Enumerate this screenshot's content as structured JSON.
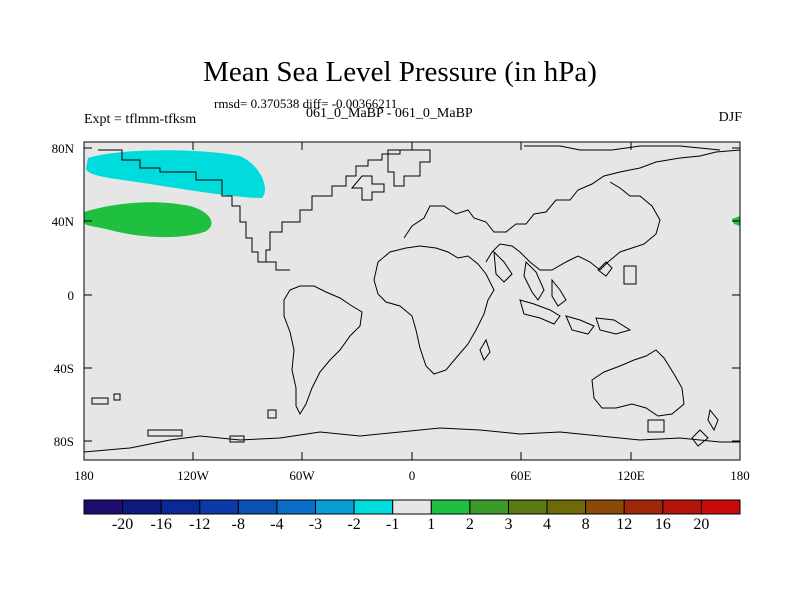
{
  "title": "Mean Sea Level Pressure (in hPa)",
  "subtitle": "rmsd= 0.370538 diff= -0.00366211",
  "experiment_label": "Expt = tflmm-tfksm",
  "experiment_names": "061_0_MaBP - 061_0_MaBP",
  "season": "DJF",
  "colors": {
    "land_background": "#e6e6e6",
    "coast": "#000000",
    "negative_anomaly": "#00dcdc",
    "positive_anomaly": "#1fbf3f"
  },
  "map": {
    "y_ticks": [
      "80N",
      "40N",
      "0",
      "40S",
      "80S"
    ],
    "x_ticks": [
      "180",
      "120W",
      "60W",
      "0",
      "60E",
      "120E",
      "180"
    ]
  },
  "colorbar": {
    "labels": [
      "-20",
      "-16",
      "-12",
      "-8",
      "-4",
      "-3",
      "-2",
      "-1",
      "1",
      "2",
      "3",
      "4",
      "8",
      "12",
      "16",
      "20"
    ],
    "colors": [
      "#1f0d6e",
      "#0e1a82",
      "#0a2896",
      "#0c3aa8",
      "#0a52b4",
      "#0a6ec8",
      "#0a9ed4",
      "#00dcdc",
      "#e6e6e6",
      "#1fbf3f",
      "#3c9a2a",
      "#5a7a14",
      "#6e6a0a",
      "#8c4a0a",
      "#a0280a",
      "#b4140a",
      "#c80a0a"
    ]
  }
}
